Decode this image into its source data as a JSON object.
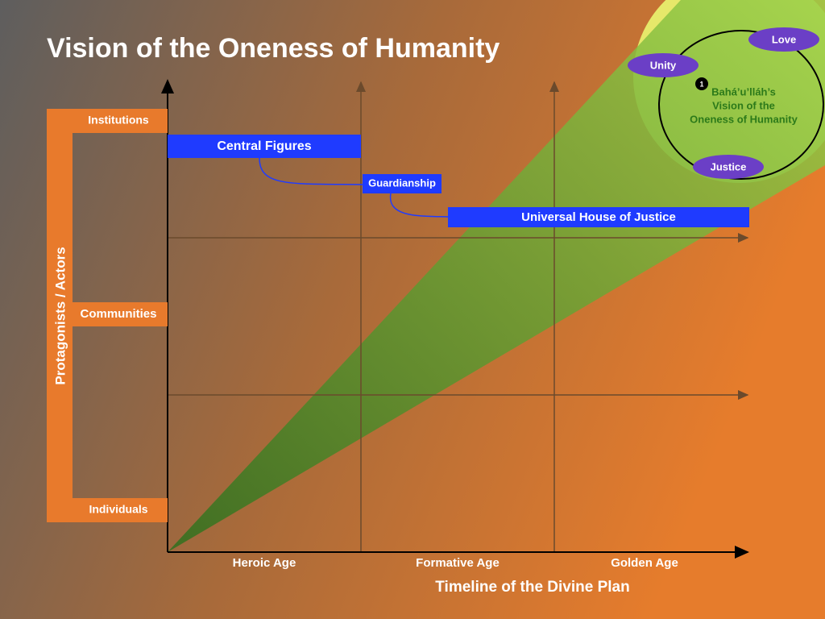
{
  "title": "Vision of the Oneness of Humanity",
  "y_axis": {
    "label": "Protagonists / Actors",
    "levels": [
      "Institutions",
      "Communities",
      "Individuals"
    ]
  },
  "x_axis": {
    "label": "Timeline of the Divine Plan",
    "ages": [
      "Heroic Age",
      "Formative Age",
      "Golden Age"
    ]
  },
  "institutions": [
    "Central Figures",
    "Guardianship",
    "Universal House of Justice"
  ],
  "vision": {
    "number": "1",
    "lines": [
      "Bahá’u’lláh’s",
      "Vision of the",
      "Oneness of Humanity"
    ],
    "qualities": [
      "Love",
      "Unity",
      "Justice"
    ]
  }
}
